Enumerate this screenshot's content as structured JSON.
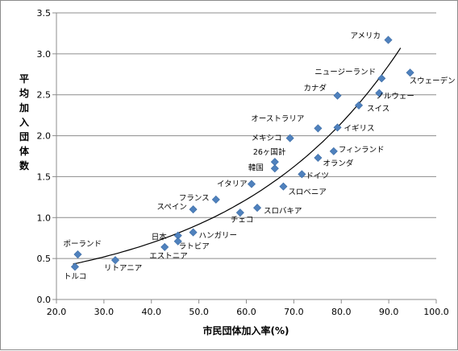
{
  "chart_data": {
    "type": "scatter",
    "xlabel": "市民団体加入率(%)",
    "ylabel": "平均加入団体数",
    "xlim": [
      20.0,
      100.0
    ],
    "ylim": [
      0.0,
      3.5
    ],
    "x_ticks": [
      "20.0",
      "30.0",
      "40.0",
      "50.0",
      "60.0",
      "70.0",
      "80.0",
      "90.0",
      "100.0"
    ],
    "y_ticks": [
      "0.0",
      "0.5",
      "1.0",
      "1.5",
      "2.0",
      "2.5",
      "3.0",
      "3.5"
    ],
    "grid": "horizontal",
    "marker_color": "#4F81BD",
    "trendline": {
      "type": "exponential",
      "color": "#000000",
      "x_range": [
        23.5,
        92.5
      ]
    },
    "points": [
      {
        "label": "アメリカ",
        "x": 89.9,
        "y": 3.17
      },
      {
        "label": "スウェーデン",
        "x": 94.5,
        "y": 2.77
      },
      {
        "label": "ニュージーランド",
        "x": 88.5,
        "y": 2.7
      },
      {
        "label": "カナダ",
        "x": 79.2,
        "y": 2.49
      },
      {
        "label": "ノルウェー",
        "x": 88.0,
        "y": 2.52
      },
      {
        "label": "スイス",
        "x": 83.7,
        "y": 2.37
      },
      {
        "label": "オーストラリア",
        "x": 75.1,
        "y": 2.09
      },
      {
        "label": "イギリス",
        "x": 79.2,
        "y": 2.1
      },
      {
        "label": "メキシコ",
        "x": 69.2,
        "y": 1.97
      },
      {
        "label": "フィンランド",
        "x": 78.4,
        "y": 1.81
      },
      {
        "label": "26ヶ国計",
        "x": 66.0,
        "y": 1.68
      },
      {
        "label": "オランダ",
        "x": 75.1,
        "y": 1.73
      },
      {
        "label": "韓国",
        "x": 66.0,
        "y": 1.6
      },
      {
        "label": "ドイツ",
        "x": 71.7,
        "y": 1.53
      },
      {
        "label": "イタリア",
        "x": 61.1,
        "y": 1.41
      },
      {
        "label": "スロベニア",
        "x": 67.8,
        "y": 1.38
      },
      {
        "label": "フランス",
        "x": 53.6,
        "y": 1.22
      },
      {
        "label": "スペイン",
        "x": 48.8,
        "y": 1.1
      },
      {
        "label": "スロバキア",
        "x": 62.3,
        "y": 1.12
      },
      {
        "label": "チェコ",
        "x": 58.7,
        "y": 1.06
      },
      {
        "label": "ハンガリー",
        "x": 48.8,
        "y": 0.82
      },
      {
        "label": "日本",
        "x": 45.6,
        "y": 0.78
      },
      {
        "label": "ラトビア",
        "x": 45.6,
        "y": 0.71
      },
      {
        "label": "エストニア",
        "x": 42.8,
        "y": 0.64
      },
      {
        "label": "ポーランド",
        "x": 24.5,
        "y": 0.55
      },
      {
        "label": "リトアニア",
        "x": 32.4,
        "y": 0.48
      },
      {
        "label": "トルコ",
        "x": 23.9,
        "y": 0.4
      }
    ]
  }
}
